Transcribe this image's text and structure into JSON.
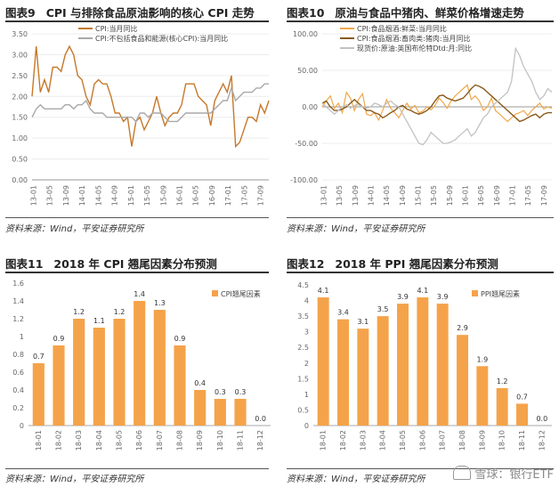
{
  "chart_data": [
    {
      "id": "fig9",
      "type": "line",
      "fig_label": "图表9",
      "title": "CPI 与排除食品原油影响的核心 CPI 走势",
      "source": "资料来源：Wind，平安证券研究所",
      "ylim": [
        0,
        3.5
      ],
      "yticks": [
        "0.00",
        "0.50",
        "1.00",
        "1.50",
        "2.00",
        "2.50",
        "3.00",
        "3.50"
      ],
      "xticks": [
        "13-01",
        "13-05",
        "13-09",
        "14-01",
        "14-05",
        "14-09",
        "15-01",
        "15-05",
        "15-09",
        "16-01",
        "16-05",
        "16-09",
        "17-01",
        "17-05",
        "17-09"
      ],
      "series": [
        {
          "name": "CPI:当月同比",
          "color": "#c6782a",
          "width": 1.4,
          "values": [
            2.0,
            3.2,
            2.1,
            2.4,
            2.1,
            2.7,
            2.7,
            2.6,
            3.0,
            3.2,
            3.0,
            2.5,
            2.4,
            2.0,
            1.8,
            2.3,
            2.4,
            2.3,
            2.3,
            2.0,
            1.6,
            1.6,
            1.4,
            1.5,
            0.8,
            1.4,
            1.5,
            1.2,
            1.4,
            1.6,
            2.0,
            1.6,
            1.3,
            1.5,
            1.6,
            1.6,
            1.8,
            2.3,
            2.3,
            2.3,
            2.0,
            1.9,
            1.8,
            1.3,
            1.9,
            2.1,
            2.3,
            2.1,
            2.5,
            0.8,
            0.9,
            1.2,
            1.5,
            1.5,
            1.4,
            1.8,
            1.6,
            1.9
          ]
        },
        {
          "name": "CPI:不包括食品和能源(核心CPI):当月同比",
          "color": "#a9a9a9",
          "width": 1.4,
          "values": [
            1.5,
            1.7,
            1.8,
            1.7,
            1.7,
            1.7,
            1.7,
            1.7,
            1.8,
            1.8,
            1.7,
            1.8,
            1.8,
            1.9,
            1.7,
            1.6,
            1.6,
            1.6,
            1.5,
            1.5,
            1.5,
            1.5,
            1.5,
            1.5,
            1.5,
            1.4,
            1.6,
            1.6,
            1.5,
            1.6,
            1.6,
            1.6,
            1.5,
            1.4,
            1.4,
            1.4,
            1.5,
            1.6,
            1.6,
            1.6,
            1.6,
            1.6,
            1.6,
            1.6,
            1.7,
            1.8,
            1.9,
            1.9,
            2.2,
            1.9,
            2.0,
            2.1,
            2.1,
            2.1,
            2.2,
            2.2,
            2.3,
            2.3
          ]
        }
      ]
    },
    {
      "id": "fig10",
      "type": "line",
      "fig_label": "图表10",
      "title": "原油与食品中猪肉、鲜菜价格增速走势",
      "source": "资料来源：Wind，平安证券研究所",
      "ylim": [
        -100,
        100
      ],
      "yticks": [
        "-100.00",
        "-50.00",
        "0.00",
        "50.00",
        "100.00"
      ],
      "xticks": [
        "13-01",
        "13-05",
        "13-09",
        "14-01",
        "14-05",
        "14-09",
        "15-01",
        "15-05",
        "15-09",
        "16-01",
        "16-05",
        "16-09",
        "17-01",
        "17-05",
        "17-09"
      ],
      "series": [
        {
          "name": "CPI:食品烟酒:鲜菜:当月同比",
          "color": "#f0a84a",
          "width": 1.2,
          "values": [
            0,
            8,
            15,
            -2,
            5,
            -8,
            20,
            12,
            -5,
            10,
            18,
            -10,
            -12,
            -8,
            -18,
            -5,
            10,
            -2,
            -8,
            -15,
            -5,
            5,
            -3,
            2,
            -8,
            -6,
            0,
            -4,
            2,
            12,
            6,
            -2,
            8,
            15,
            20,
            25,
            30,
            10,
            15,
            8,
            -5,
            0,
            12,
            -5,
            -10,
            -15,
            -20,
            -15,
            -10,
            -8,
            -5,
            -12,
            -5,
            0,
            5,
            -3,
            0,
            -2
          ]
        },
        {
          "name": "CPI:食品烟酒:畜肉类:猪肉:当月同比",
          "color": "#8a5a1a",
          "width": 1.4,
          "values": [
            5,
            8,
            0,
            -5,
            -5,
            -3,
            0,
            5,
            10,
            5,
            0,
            -5,
            -5,
            -8,
            -10,
            -15,
            -12,
            -8,
            -5,
            0,
            2,
            -3,
            -5,
            -8,
            -10,
            -8,
            -5,
            0,
            8,
            15,
            16,
            12,
            10,
            8,
            10,
            12,
            18,
            25,
            30,
            28,
            25,
            20,
            15,
            10,
            5,
            0,
            -5,
            -10,
            -15,
            -20,
            -18,
            -15,
            -12,
            -10,
            -15,
            -10,
            -8,
            -8
          ]
        },
        {
          "name": "现货价:原油:英国布伦特Dtd:月:同比",
          "color": "#c2c2c2",
          "width": 1.3,
          "values": [
            5,
            0,
            -5,
            -10,
            -5,
            0,
            3,
            -2,
            2,
            3,
            0,
            -2,
            0,
            5,
            3,
            0,
            5,
            8,
            3,
            0,
            -10,
            -20,
            -30,
            -40,
            -50,
            -52,
            -45,
            -35,
            -40,
            -45,
            -50,
            -50,
            -48,
            -45,
            -40,
            -35,
            -30,
            -40,
            -35,
            -25,
            -15,
            -10,
            0,
            5,
            10,
            15,
            20,
            35,
            80,
            70,
            55,
            45,
            35,
            20,
            10,
            15,
            25,
            20
          ]
        }
      ]
    },
    {
      "id": "fig11",
      "type": "bar",
      "fig_label": "图表11",
      "title": "2018 年 CPI 翘尾因素分布预测",
      "source": "资料来源：Wind，平安证券研究所",
      "categories": [
        "18-01",
        "18-02",
        "18-03",
        "18-04",
        "18-05",
        "18-06",
        "18-07",
        "18-08",
        "18-09",
        "18-10",
        "18-11",
        "18-12"
      ],
      "series": [
        {
          "name": "CPI翘尾因素",
          "values": [
            0.7,
            0.9,
            1.2,
            1.1,
            1.2,
            1.4,
            1.3,
            0.9,
            0.4,
            0.3,
            0.3,
            0.0
          ]
        }
      ],
      "data_labels": [
        "0.7",
        "0.9",
        "1.2",
        "1.1",
        "1.2",
        "1.4",
        "1.3",
        "0.9",
        "0.4",
        "0.3",
        "0.3",
        "0.0"
      ],
      "color": "#f5a34a",
      "ylim": [
        0,
        1.6
      ],
      "yticks": [
        "0",
        "0.2",
        "0.4",
        "0.6",
        "0.8",
        "1",
        "1.2",
        "1.4",
        "1.6"
      ]
    },
    {
      "id": "fig12",
      "type": "bar",
      "fig_label": "图表12",
      "title": "2018 年 PPI 翘尾因素分布预测",
      "source": "资料来源：Wind，平安证券研究所",
      "categories": [
        "18-01",
        "18-02",
        "18-03",
        "18-04",
        "18-05",
        "18-06",
        "18-07",
        "18-08",
        "18-09",
        "18-10",
        "18-11",
        "18-12"
      ],
      "series": [
        {
          "name": "PPI翘尾因素",
          "values": [
            4.1,
            3.4,
            3.1,
            3.5,
            3.9,
            4.1,
            3.9,
            2.9,
            1.9,
            1.2,
            0.7,
            0.0
          ]
        }
      ],
      "data_labels": [
        "4.1",
        "3.4",
        "3.1",
        "3.5",
        "3.9",
        "4.1",
        "3.9",
        "2.9",
        "1.9",
        "1.2",
        "0.7",
        "0.0"
      ],
      "color": "#f5a34a",
      "ylim": [
        0,
        4.5
      ],
      "yticks": [
        "0",
        "0.5",
        "1",
        "1.5",
        "2",
        "2.5",
        "3",
        "3.5",
        "4",
        "4.5"
      ]
    }
  ],
  "watermark": {
    "text": "雪球：银行ETF"
  }
}
